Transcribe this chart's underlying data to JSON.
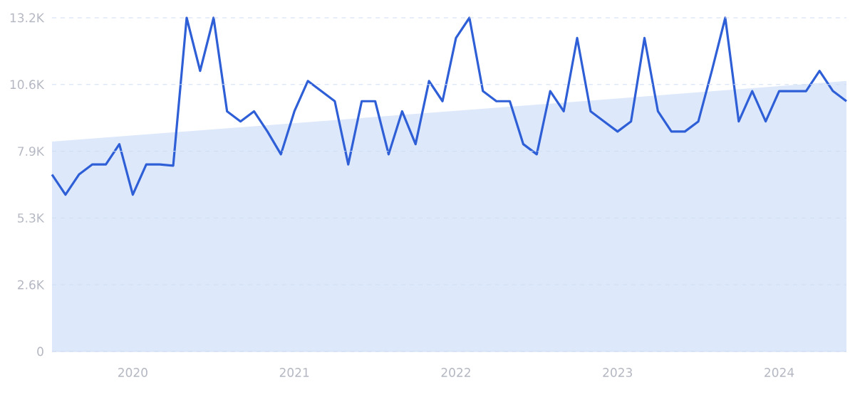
{
  "chart_data": {
    "type": "line",
    "x": [
      "2019-07",
      "2019-08",
      "2019-09",
      "2019-10",
      "2019-11",
      "2019-12",
      "2020-01",
      "2020-02",
      "2020-03",
      "2020-04",
      "2020-05",
      "2020-06",
      "2020-07",
      "2020-08",
      "2020-09",
      "2020-10",
      "2020-11",
      "2020-12",
      "2021-01",
      "2021-02",
      "2021-03",
      "2021-04",
      "2021-05",
      "2021-06",
      "2021-07",
      "2021-08",
      "2021-09",
      "2021-10",
      "2021-11",
      "2021-12",
      "2022-01",
      "2022-02",
      "2022-03",
      "2022-04",
      "2022-05",
      "2022-06",
      "2022-07",
      "2022-08",
      "2022-09",
      "2022-10",
      "2022-11",
      "2022-12",
      "2023-01",
      "2023-02",
      "2023-03",
      "2023-04",
      "2023-05",
      "2023-06",
      "2023-07",
      "2023-08",
      "2023-09",
      "2023-10",
      "2023-11",
      "2023-12",
      "2024-01",
      "2024-02",
      "2024-03",
      "2024-04",
      "2024-05",
      "2024-06"
    ],
    "series": [
      {
        "type": "area",
        "color": "#dde9fb",
        "x": [
          "2019-07",
          "2024-06"
        ],
        "values": [
          8300,
          10700
        ]
      },
      {
        "color": "#2f5fd6",
        "values": [
          7000,
          6200,
          7000,
          7400,
          7400,
          8200,
          6200,
          7400,
          7400,
          7350,
          13200,
          11100,
          13200,
          9500,
          9100,
          9500,
          8700,
          7800,
          9500,
          10700,
          10300,
          9900,
          7400,
          9900,
          9900,
          7800,
          9500,
          8200,
          10700,
          9900,
          12400,
          13200,
          10300,
          9900,
          9900,
          8200,
          7800,
          10300,
          9500,
          12400,
          9500,
          9100,
          8700,
          9100,
          12400,
          9500,
          8700,
          8700,
          9100,
          11100,
          13200,
          9100,
          10300,
          9100,
          10300,
          10300,
          10300,
          11100,
          10300,
          9900
        ]
      }
    ],
    "xlim": [
      "2019-07",
      "2024-06"
    ],
    "xticks": [
      "2020",
      "2021",
      "2022",
      "2023",
      "2024"
    ],
    "ylim": [
      0,
      13200
    ],
    "yticks": [
      0,
      {
        "value": 2640,
        "label": "2.6K"
      },
      {
        "value": 5280,
        "label": "5.3K"
      },
      {
        "value": 7920,
        "label": "7.9K"
      },
      {
        "value": 10560,
        "label": "10.6K"
      },
      {
        "value": 13200,
        "label": "13.2K"
      }
    ],
    "grid": "y"
  }
}
